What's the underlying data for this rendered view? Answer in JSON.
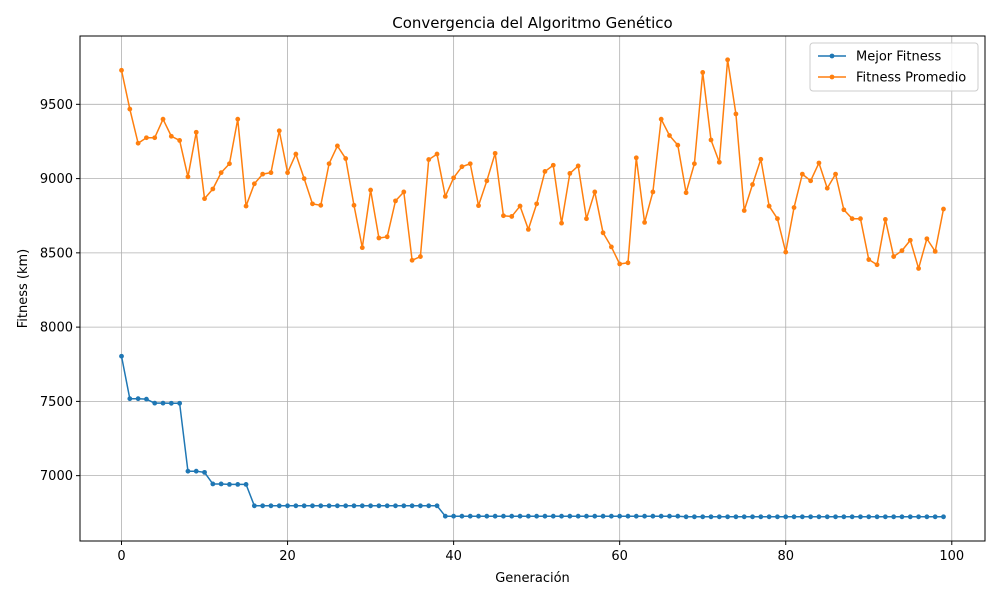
{
  "chart_data": {
    "type": "line",
    "title": "Convergencia del Algoritmo Genético",
    "xlabel": "Generación",
    "ylabel": "Fitness (km)",
    "xlim": [
      -5,
      104
    ],
    "ylim": [
      6560,
      9960
    ],
    "xticks": [
      0,
      20,
      40,
      60,
      80,
      100
    ],
    "yticks": [
      7000,
      7500,
      8000,
      8500,
      9000,
      9500
    ],
    "grid": true,
    "legend_position": "top-right",
    "x": [
      0,
      1,
      2,
      3,
      4,
      5,
      6,
      7,
      8,
      9,
      10,
      11,
      12,
      13,
      14,
      15,
      16,
      17,
      18,
      19,
      20,
      21,
      22,
      23,
      24,
      25,
      26,
      27,
      28,
      29,
      30,
      31,
      32,
      33,
      34,
      35,
      36,
      37,
      38,
      39,
      40,
      41,
      42,
      43,
      44,
      45,
      46,
      47,
      48,
      49,
      50,
      51,
      52,
      53,
      54,
      55,
      56,
      57,
      58,
      59,
      60,
      61,
      62,
      63,
      64,
      65,
      66,
      67,
      68,
      69,
      70,
      71,
      72,
      73,
      74,
      75,
      76,
      77,
      78,
      79,
      80,
      81,
      82,
      83,
      84,
      85,
      86,
      87,
      88,
      89,
      90,
      91,
      92,
      93,
      94,
      95,
      96,
      97,
      98,
      99
    ],
    "series": [
      {
        "name": "Mejor Fitness",
        "color": "#1f77b4",
        "values": [
          7804,
          7518,
          7518,
          7515,
          7488,
          7488,
          7487,
          7487,
          7030,
          7030,
          7022,
          6944,
          6944,
          6941,
          6941,
          6941,
          6797,
          6797,
          6797,
          6797,
          6797,
          6797,
          6797,
          6797,
          6797,
          6797,
          6797,
          6797,
          6797,
          6797,
          6797,
          6797,
          6797,
          6797,
          6797,
          6797,
          6797,
          6797,
          6797,
          6727,
          6727,
          6727,
          6727,
          6727,
          6727,
          6727,
          6727,
          6727,
          6727,
          6727,
          6727,
          6727,
          6727,
          6727,
          6727,
          6727,
          6727,
          6727,
          6727,
          6727,
          6727,
          6727,
          6727,
          6727,
          6727,
          6727,
          6727,
          6727,
          6723,
          6723,
          6723,
          6723,
          6723,
          6723,
          6723,
          6723,
          6723,
          6723,
          6723,
          6723,
          6723,
          6723,
          6723,
          6723,
          6723,
          6723,
          6723,
          6723,
          6723,
          6723,
          6723,
          6723,
          6723,
          6723,
          6723,
          6723,
          6723,
          6723,
          6723,
          6723
        ]
      },
      {
        "name": "Fitness Promedio",
        "color": "#ff7f0e",
        "values": [
          9729,
          9468,
          9238,
          9275,
          9275,
          9400,
          9285,
          9257,
          9012,
          9312,
          8865,
          8930,
          9040,
          9100,
          9400,
          8815,
          8965,
          9030,
          9040,
          9322,
          9040,
          9165,
          9000,
          8830,
          8820,
          9100,
          9220,
          9135,
          8820,
          8535,
          8923,
          8600,
          8608,
          8850,
          8910,
          8450,
          8475,
          9128,
          9165,
          8880,
          9005,
          9080,
          9100,
          8818,
          8985,
          9170,
          8750,
          8745,
          8815,
          8658,
          8830,
          9048,
          9090,
          8700,
          9035,
          9085,
          8730,
          8910,
          8635,
          8540,
          8425,
          8433,
          9140,
          8705,
          8910,
          9400,
          9290,
          9225,
          8905,
          9100,
          9715,
          9260,
          9110,
          9800,
          9435,
          8785,
          8960,
          9130,
          8815,
          8730,
          8505,
          8805,
          9030,
          8985,
          9105,
          8935,
          9030,
          8790,
          8730,
          8730,
          8455,
          8420,
          8725,
          8475,
          8515,
          8585,
          8395,
          8595,
          8510,
          8795
        ]
      }
    ]
  }
}
